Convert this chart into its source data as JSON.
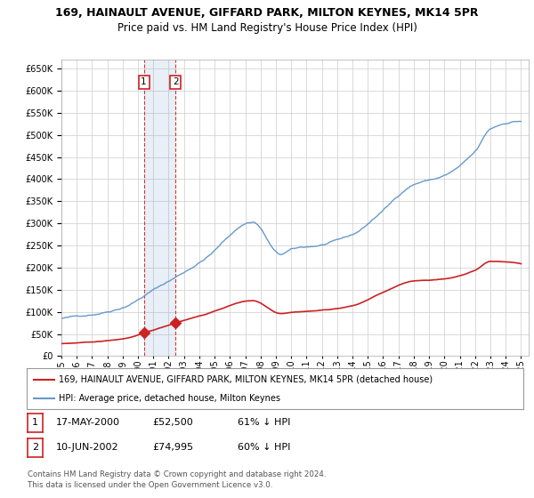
{
  "title": "169, HAINAULT AVENUE, GIFFARD PARK, MILTON KEYNES, MK14 5PR",
  "subtitle": "Price paid vs. HM Land Registry's House Price Index (HPI)",
  "xlim_start": 1995.0,
  "xlim_end": 2025.5,
  "ylim": [
    0,
    670000
  ],
  "yticks": [
    0,
    50000,
    100000,
    150000,
    200000,
    250000,
    300000,
    350000,
    400000,
    450000,
    500000,
    550000,
    600000,
    650000
  ],
  "hpi_color": "#6699cc",
  "price_color": "#cc2222",
  "bg_color": "#ffffff",
  "grid_color": "#cccccc",
  "transaction1_date": 2000.38,
  "transaction1_price": 52500,
  "transaction1_label": "1",
  "transaction2_date": 2002.44,
  "transaction2_price": 74995,
  "transaction2_label": "2",
  "legend_line1": "169, HAINAULT AVENUE, GIFFARD PARK, MILTON KEYNES, MK14 5PR (detached house)",
  "legend_line2": "HPI: Average price, detached house, Milton Keynes",
  "table_row1": [
    "1",
    "17-MAY-2000",
    "£52,500",
    "61% ↓ HPI"
  ],
  "table_row2": [
    "2",
    "10-JUN-2002",
    "£74,995",
    "60% ↓ HPI"
  ],
  "footnote": "Contains HM Land Registry data © Crown copyright and database right 2024.\nThis data is licensed under the Open Government Licence v3.0.",
  "title_fontsize": 9,
  "subtitle_fontsize": 8.5,
  "axis_fontsize": 7,
  "hpi_keypoints_x": [
    1995,
    1997,
    1999,
    2001,
    2003,
    2004.5,
    2007.5,
    2009.3,
    2010,
    2012,
    2014,
    2016,
    2018,
    2020,
    2022,
    2023,
    2025
  ],
  "hpi_keypoints_y": [
    85000,
    95000,
    115000,
    155000,
    195000,
    230000,
    310000,
    235000,
    245000,
    255000,
    275000,
    330000,
    390000,
    410000,
    460000,
    510000,
    530000
  ],
  "price_keypoints_x": [
    1995,
    1997,
    1999,
    2001,
    2003,
    2004.5,
    2007.5,
    2009.3,
    2010,
    2012,
    2014,
    2016,
    2018,
    2020,
    2022,
    2023,
    2025
  ],
  "price_keypoints_y": [
    28000,
    31000,
    38000,
    57000,
    80000,
    95000,
    125000,
    97000,
    100000,
    105000,
    115000,
    145000,
    170000,
    175000,
    195000,
    215000,
    210000
  ]
}
